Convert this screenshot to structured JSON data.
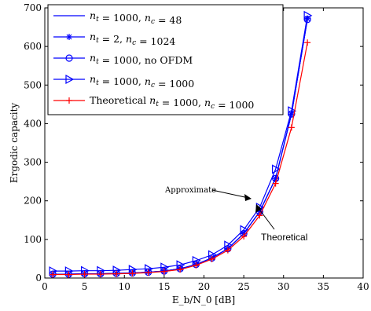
{
  "chart_data": {
    "type": "line",
    "xlabel": "E_b/N_0 [dB]",
    "ylabel": "Ergodic capacity",
    "xlim": [
      0,
      40
    ],
    "ylim": [
      0,
      700
    ],
    "xticks": [
      0,
      5,
      10,
      15,
      20,
      25,
      30,
      35,
      40
    ],
    "yticks": [
      0,
      100,
      200,
      300,
      400,
      500,
      600,
      700
    ],
    "x": [
      1,
      3,
      5,
      7,
      9,
      11,
      13,
      15,
      17,
      19,
      21,
      23,
      25,
      27,
      29,
      31,
      33
    ],
    "grid": false,
    "legend_position": "top-left",
    "series": [
      {
        "name": "n_t = 1000, n_c = 48",
        "color": "#0000ff",
        "marker": "none",
        "values": [
          10,
          10,
          11,
          11,
          12,
          13,
          15,
          18,
          24,
          35,
          52,
          76,
          115,
          172,
          258,
          425,
          672
        ]
      },
      {
        "name": "n_t = 2, n_c = 1024",
        "color": "#0000ff",
        "marker": "star",
        "values": [
          10,
          10,
          11,
          11,
          12,
          13,
          15,
          18,
          24,
          35,
          52,
          76,
          115,
          172,
          258,
          425,
          672
        ]
      },
      {
        "name": "n_t = 1000, no OFDM",
        "color": "#0000ff",
        "marker": "circle",
        "values": [
          10,
          10,
          11,
          11,
          12,
          13,
          15,
          18,
          24,
          35,
          52,
          76,
          115,
          172,
          258,
          425,
          670
        ]
      },
      {
        "name": "n_t = 1000, n_c = 1000",
        "color": "#0000ff",
        "marker": "triangle-right",
        "values": [
          18,
          18,
          19,
          19,
          20,
          22,
          24,
          28,
          34,
          45,
          60,
          85,
          125,
          183,
          282,
          433,
          680
        ]
      },
      {
        "name": "Theoretical n_t = 1000, n_c = 1000",
        "color": "#ff0000",
        "marker": "plus",
        "values": [
          9,
          9,
          10,
          10,
          11,
          12,
          14,
          17,
          22,
          33,
          49,
          72,
          108,
          162,
          245,
          390,
          610
        ]
      }
    ],
    "annotations": [
      {
        "text": "Approximate"
      },
      {
        "text": "Theoretical"
      }
    ]
  }
}
